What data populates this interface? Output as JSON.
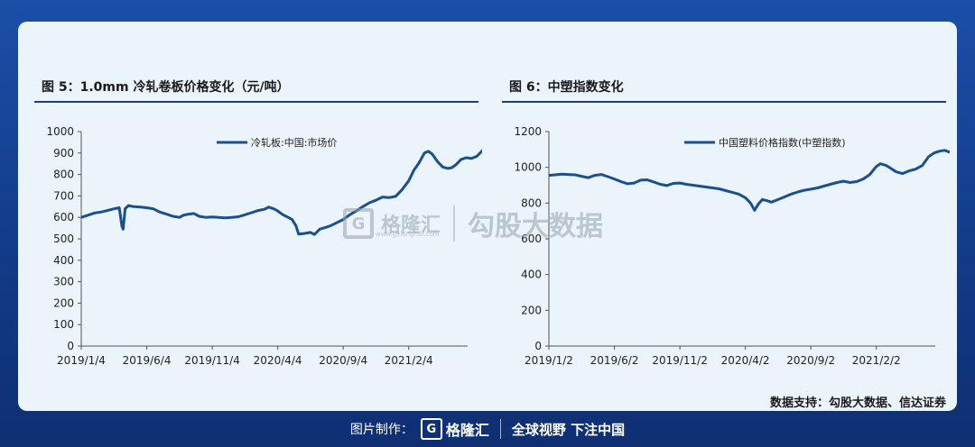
{
  "source_text": "数据支持：勾股大数据、信达证券",
  "footer": {
    "made_by_label": "图片制作：",
    "brand": "格隆汇",
    "slogan": "全球视野 下注中国"
  },
  "watermark": {
    "brand": "格隆汇",
    "site": "www.gelonghui.com",
    "text": "勾股大数据"
  },
  "colors": {
    "line": "#1b4f8e",
    "title_rule": "#1d3c78",
    "background": "#ebf3fb"
  },
  "chart_data": [
    {
      "type": "line",
      "title": "图 5：1.0mm 冷轧卷板价格变化（元/吨）",
      "y_ticks": [
        "0",
        "100",
        "200",
        "300",
        "400",
        "500",
        "600",
        "700",
        "800",
        "900",
        "1000"
      ],
      "ylim": [
        0,
        1000
      ],
      "x_tick_labels": [
        "2019/1/4",
        "2019/6/4",
        "2019/11/4",
        "2020/4/4",
        "2020/9/4",
        "2021/2/4"
      ],
      "x_tick_positions": [
        0,
        5,
        10,
        15,
        20,
        25
      ],
      "x_range": [
        0,
        29.5
      ],
      "legend_position": "top-center",
      "series": [
        {
          "name": "冷轧板:中国:市场价",
          "points": [
            [
              0,
              600
            ],
            [
              0.5,
              610
            ],
            [
              1,
              620
            ],
            [
              1.5,
              625
            ],
            [
              2,
              632
            ],
            [
              2.5,
              640
            ],
            [
              2.9,
              645
            ],
            [
              3.1,
              560
            ],
            [
              3.2,
              545
            ],
            [
              3.35,
              640
            ],
            [
              3.6,
              655
            ],
            [
              4,
              650
            ],
            [
              4.5,
              648
            ],
            [
              5,
              645
            ],
            [
              5.5,
              640
            ],
            [
              6,
              625
            ],
            [
              6.5,
              615
            ],
            [
              7,
              605
            ],
            [
              7.5,
              600
            ],
            [
              7.8,
              610
            ],
            [
              8.2,
              615
            ],
            [
              8.6,
              618
            ],
            [
              9,
              605
            ],
            [
              9.5,
              600
            ],
            [
              10,
              602
            ],
            [
              10.5,
              600
            ],
            [
              11,
              598
            ],
            [
              11.5,
              600
            ],
            [
              12,
              603
            ],
            [
              12.5,
              612
            ],
            [
              13,
              622
            ],
            [
              13.5,
              632
            ],
            [
              14,
              638
            ],
            [
              14.3,
              648
            ],
            [
              14.7,
              640
            ],
            [
              15,
              630
            ],
            [
              15.4,
              612
            ],
            [
              15.8,
              600
            ],
            [
              16.1,
              590
            ],
            [
              16.4,
              560
            ],
            [
              16.6,
              522
            ],
            [
              17,
              525
            ],
            [
              17.5,
              530
            ],
            [
              17.8,
              520
            ],
            [
              18.2,
              545
            ],
            [
              18.6,
              552
            ],
            [
              19,
              560
            ],
            [
              19.5,
              575
            ],
            [
              20,
              590
            ],
            [
              20.5,
              612
            ],
            [
              21,
              630
            ],
            [
              21.5,
              650
            ],
            [
              22,
              668
            ],
            [
              22.5,
              680
            ],
            [
              23,
              695
            ],
            [
              23.5,
              692
            ],
            [
              24,
              698
            ],
            [
              24.5,
              730
            ],
            [
              25,
              770
            ],
            [
              25.4,
              820
            ],
            [
              25.8,
              855
            ],
            [
              26.2,
              900
            ],
            [
              26.5,
              908
            ],
            [
              26.8,
              895
            ],
            [
              27.2,
              860
            ],
            [
              27.6,
              835
            ],
            [
              28,
              828
            ],
            [
              28.3,
              832
            ],
            [
              28.6,
              845
            ],
            [
              29,
              870
            ],
            [
              29.4,
              878
            ],
            [
              29.8,
              875
            ],
            [
              30.2,
              885
            ],
            [
              30.6,
              910
            ],
            [
              30.9,
              925
            ],
            [
              31.2,
              932
            ],
            [
              31.5,
              945
            ]
          ]
        }
      ]
    },
    {
      "type": "line",
      "title": "图 6：中塑指数变化",
      "y_ticks": [
        "0",
        "200",
        "400",
        "600",
        "800",
        "1000",
        "1200"
      ],
      "ylim": [
        0,
        1200
      ],
      "x_tick_labels": [
        "2019/1/2",
        "2019/6/2",
        "2019/11/2",
        "2020/4/2",
        "2020/9/2",
        "2021/2/2"
      ],
      "x_tick_positions": [
        0,
        5,
        10,
        15,
        20,
        25
      ],
      "x_range": [
        0,
        29.5
      ],
      "legend_position": "top-center",
      "series": [
        {
          "name": "中国塑料价格指数(中塑指数)",
          "points": [
            [
              0,
              955
            ],
            [
              1,
              962
            ],
            [
              2,
              958
            ],
            [
              2.5,
              950
            ],
            [
              3,
              942
            ],
            [
              3.5,
              955
            ],
            [
              4,
              960
            ],
            [
              4.5,
              948
            ],
            [
              5,
              935
            ],
            [
              5.5,
              920
            ],
            [
              6,
              908
            ],
            [
              6.5,
              912
            ],
            [
              7,
              928
            ],
            [
              7.5,
              930
            ],
            [
              8,
              918
            ],
            [
              8.5,
              905
            ],
            [
              9,
              898
            ],
            [
              9.5,
              910
            ],
            [
              10,
              912
            ],
            [
              10.5,
              905
            ],
            [
              11,
              900
            ],
            [
              11.5,
              895
            ],
            [
              12,
              890
            ],
            [
              12.5,
              885
            ],
            [
              13,
              880
            ],
            [
              13.5,
              870
            ],
            [
              14,
              860
            ],
            [
              14.5,
              850
            ],
            [
              15,
              830
            ],
            [
              15.4,
              800
            ],
            [
              15.7,
              760
            ],
            [
              16,
              795
            ],
            [
              16.3,
              820
            ],
            [
              16.6,
              815
            ],
            [
              17,
              805
            ],
            [
              17.5,
              820
            ],
            [
              18,
              835
            ],
            [
              18.5,
              850
            ],
            [
              19,
              862
            ],
            [
              19.5,
              872
            ],
            [
              20,
              878
            ],
            [
              20.5,
              885
            ],
            [
              21,
              895
            ],
            [
              21.5,
              905
            ],
            [
              22,
              915
            ],
            [
              22.5,
              922
            ],
            [
              23,
              915
            ],
            [
              23.5,
              920
            ],
            [
              24,
              935
            ],
            [
              24.5,
              960
            ],
            [
              25,
              1005
            ],
            [
              25.3,
              1020
            ],
            [
              25.7,
              1012
            ],
            [
              26,
              1000
            ],
            [
              26.5,
              975
            ],
            [
              27,
              965
            ],
            [
              27.5,
              980
            ],
            [
              28,
              990
            ],
            [
              28.5,
              1010
            ],
            [
              29,
              1060
            ],
            [
              29.4,
              1080
            ],
            [
              29.8,
              1090
            ],
            [
              30.2,
              1095
            ],
            [
              30.6,
              1085
            ],
            [
              31,
              1065
            ],
            [
              31.5,
              1055
            ]
          ]
        }
      ]
    }
  ]
}
